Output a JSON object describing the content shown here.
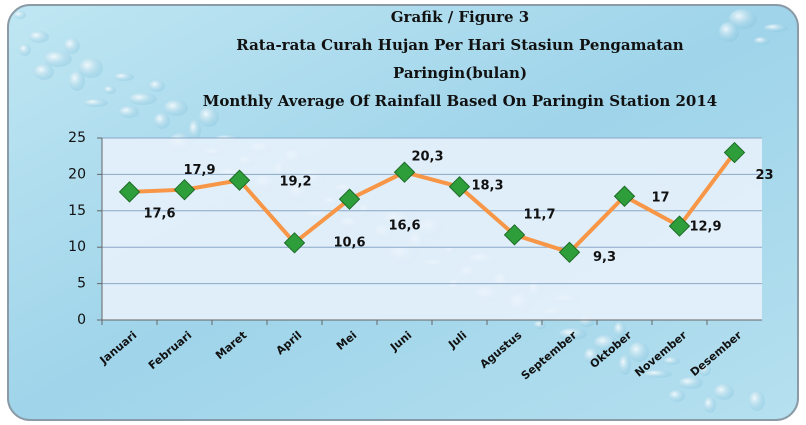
{
  "chart_data": {
    "type": "line",
    "title": [
      "Grafik / Figure 3",
      "Rata-rata Curah Hujan Per Hari Stasiun Pengamatan",
      "Paringin(bulan)",
      "Monthly Average Of Rainfall Based On Paringin Station 2014"
    ],
    "categories": [
      "Januari",
      "Februari",
      "Maret",
      "April",
      "Mei",
      "Juni",
      "Juli",
      "Agustus",
      "September",
      "Oktober",
      "November",
      "Desember"
    ],
    "series": [
      {
        "name": "Paringin",
        "color": "#f79646",
        "values": [
          17.6,
          17.9,
          19.2,
          10.6,
          16.6,
          20.3,
          18.3,
          11.7,
          9.3,
          17,
          12.9,
          23
        ],
        "value_labels": [
          "17,6",
          "17,9",
          "19,2",
          "10,6",
          "16,6",
          "20,3",
          "18,3",
          "11,7",
          "9,3",
          "17",
          "12,9",
          "23"
        ]
      }
    ],
    "marker_color": "#2e9e3a",
    "ylim": [
      0,
      25
    ],
    "yticks": [
      0,
      5,
      10,
      15,
      20,
      25
    ],
    "grid": true
  }
}
